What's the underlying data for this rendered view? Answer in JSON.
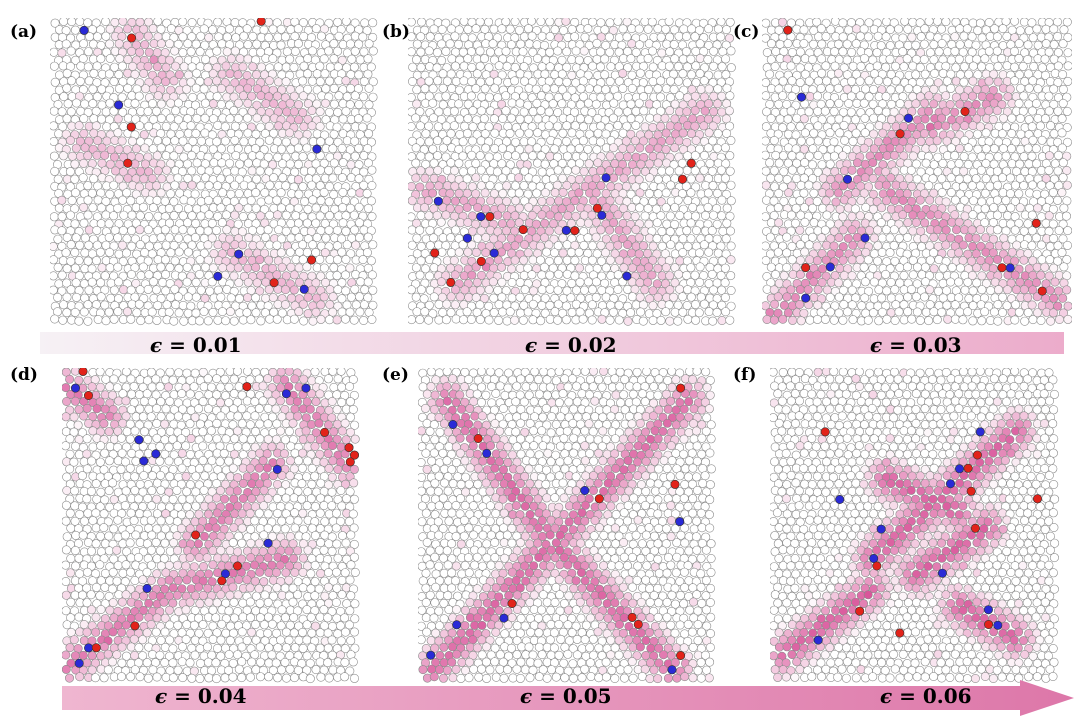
{
  "panels": [
    {
      "label": "(a)",
      "strain": "0.01",
      "pattern": "a"
    },
    {
      "label": "(b)",
      "strain": "0.02",
      "pattern": "b"
    },
    {
      "label": "(c)",
      "strain": "0.03",
      "pattern": "c"
    },
    {
      "label": "(d)",
      "strain": "0.04",
      "pattern": "d"
    },
    {
      "label": "(e)",
      "strain": "0.05",
      "pattern": "e"
    },
    {
      "label": "(f)",
      "strain": "0.06",
      "pattern": "f"
    }
  ],
  "symbol": "ϵ",
  "equals": "=",
  "colors": {
    "particle_edge": "#8a8a8a",
    "particle_fill": "#ffffff",
    "shear_band": "#d9559a",
    "defect_red": "#e2231a",
    "defect_blue": "#2a2ad6",
    "arrow_start": "#f6eef3",
    "arrow_end": "#e07aac"
  }
}
